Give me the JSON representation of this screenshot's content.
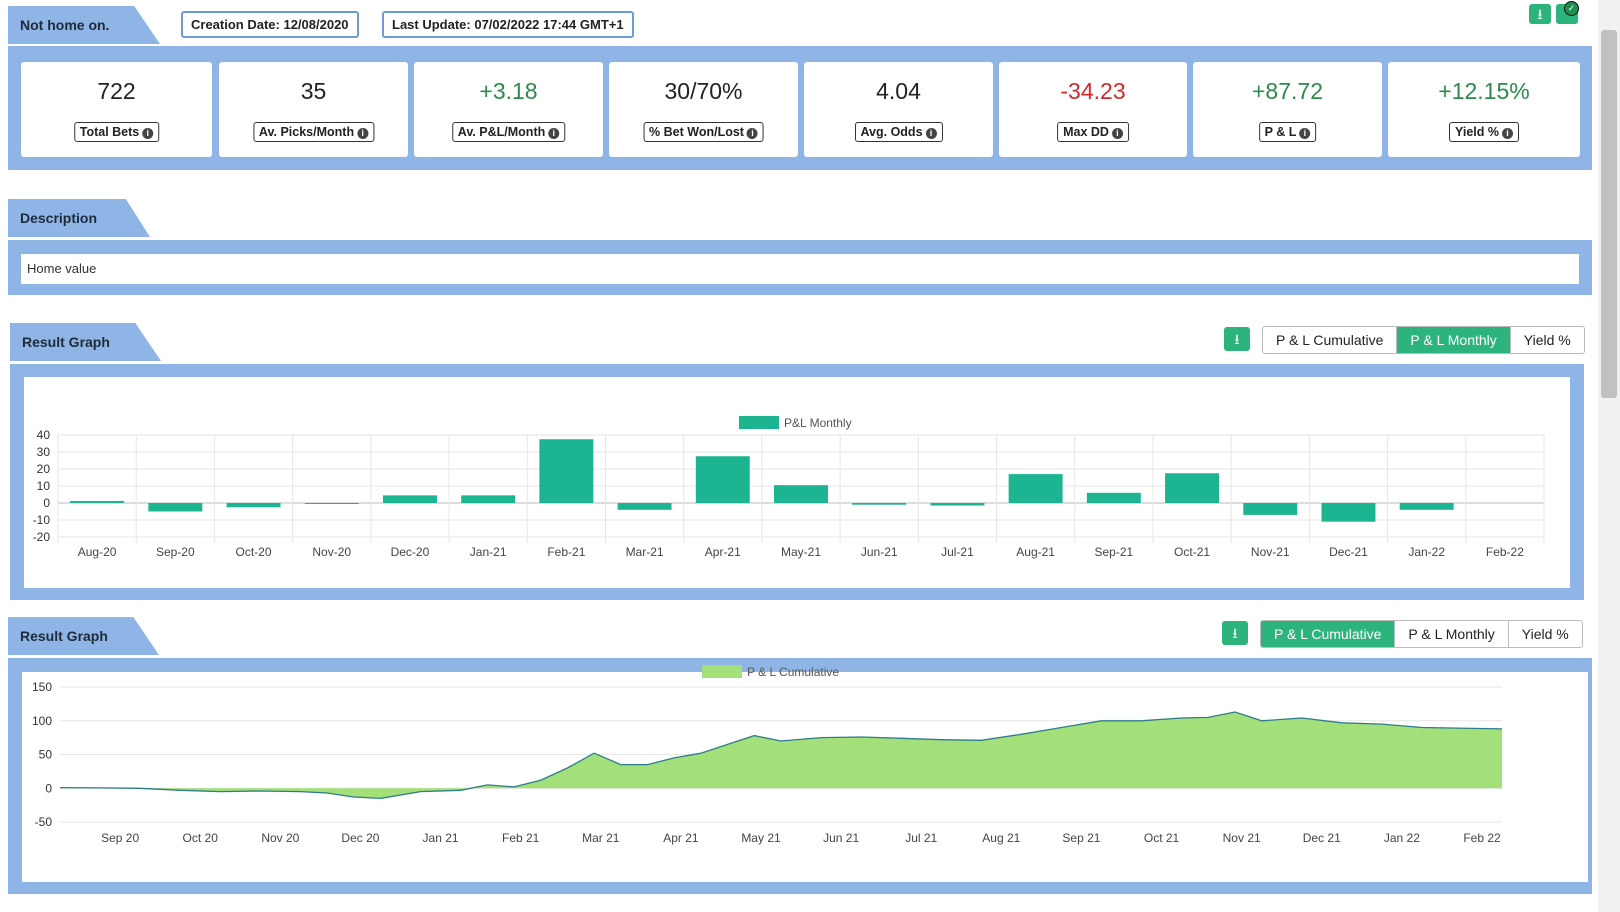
{
  "header": {
    "title": "Not home on.",
    "creation_date": "Creation Date: 12/08/2020",
    "last_update": "Last Update: 07/02/2022 17:44 GMT+1"
  },
  "stats": [
    {
      "value": "722",
      "label": "Total Bets",
      "tone": "neutral"
    },
    {
      "value": "35",
      "label": "Av. Picks/Month",
      "tone": "neutral"
    },
    {
      "value": "+3.18",
      "label": "Av. P&L/Month",
      "tone": "positive"
    },
    {
      "value": "30/70%",
      "label": "% Bet Won/Lost",
      "tone": "neutral"
    },
    {
      "value": "4.04",
      "label": "Avg. Odds",
      "tone": "neutral"
    },
    {
      "value": "-34.23",
      "label": "Max DD",
      "tone": "negative"
    },
    {
      "value": "+87.72",
      "label": "P & L",
      "tone": "positive"
    },
    {
      "value": "+12.15%",
      "label": "Yield %",
      "tone": "positive"
    }
  ],
  "description": {
    "title": "Description",
    "text": "Home value"
  },
  "graph1": {
    "title": "Result Graph",
    "toggles": [
      "P & L Cumulative",
      "P & L Monthly",
      "Yield %"
    ],
    "active": 1
  },
  "graph2": {
    "title": "Result Graph",
    "toggles": [
      "P & L Cumulative",
      "P & L Monthly",
      "Yield %"
    ],
    "active": 0
  },
  "colors": {
    "band": "#8fb5e6",
    "accent": "#2db37c",
    "bar": "#1db591",
    "area": "#a3e07a",
    "area_line": "#2d7d8c"
  },
  "icons": {
    "download": "download-icon",
    "check": "check-circle-icon",
    "info": "info-icon"
  },
  "chart_data": [
    {
      "type": "bar",
      "legend": "P&L Monthly",
      "categories": [
        "Aug-20",
        "Sep-20",
        "Oct-20",
        "Nov-20",
        "Dec-20",
        "Jan-21",
        "Feb-21",
        "Mar-21",
        "Apr-21",
        "May-21",
        "Jun-21",
        "Jul-21",
        "Aug-21",
        "Sep-21",
        "Oct-21",
        "Nov-21",
        "Dec-21",
        "Jan-22",
        "Feb-22"
      ],
      "values": [
        1.2,
        -5,
        -2.5,
        -0.5,
        4.5,
        4.5,
        37.5,
        -4,
        27.5,
        10.5,
        -1,
        -1.5,
        17,
        6,
        17.5,
        -7,
        -11,
        -4,
        0
      ],
      "yticks": [
        "40",
        "30",
        "20",
        "10",
        "0",
        "-10",
        "-20"
      ],
      "ylim": [
        -20,
        40
      ]
    },
    {
      "type": "area",
      "legend": "P & L Cumulative",
      "xticks": [
        "Sep 20",
        "Oct 20",
        "Nov 20",
        "Dec 20",
        "Jan 21",
        "Feb 21",
        "Mar 21",
        "Apr 21",
        "May 21",
        "Jun 21",
        "Jul 21",
        "Aug 21",
        "Sep 21",
        "Oct 21",
        "Nov 21",
        "Dec 21",
        "Jan 22",
        "Feb 22"
      ],
      "yticks": [
        "150",
        "100",
        "50",
        "0",
        "-50"
      ],
      "ylim": [
        -50,
        150
      ],
      "points": [
        [
          "Aug 20",
          1
        ],
        [
          "Sep 20",
          0.5
        ],
        [
          "Sep 20",
          0
        ],
        [
          "Oct 20",
          -3
        ],
        [
          "Oct 20",
          -5
        ],
        [
          "Nov 20",
          -4
        ],
        [
          "Nov 20",
          -5
        ],
        [
          "Dec 20",
          -7
        ],
        [
          "Dec 20",
          -13
        ],
        [
          "Dec 20",
          -15
        ],
        [
          "Jan 21",
          -5
        ],
        [
          "Jan 21",
          -3
        ],
        [
          "Feb 21",
          5
        ],
        [
          "Feb 21",
          2
        ],
        [
          "Feb 21",
          12
        ],
        [
          "Mar 21",
          30
        ],
        [
          "Mar 21",
          52
        ],
        [
          "Mar 21",
          35
        ],
        [
          "Apr 21",
          35
        ],
        [
          "Apr 21",
          45
        ],
        [
          "Apr 21",
          52
        ],
        [
          "May 21",
          65
        ],
        [
          "May 21",
          78
        ],
        [
          "May 21",
          70
        ],
        [
          "Jun 21",
          75
        ],
        [
          "Jun 21",
          76
        ],
        [
          "Jul 21",
          74
        ],
        [
          "Jul 21",
          72
        ],
        [
          "Aug 21",
          71
        ],
        [
          "Aug 21",
          80
        ],
        [
          "Sep 21",
          90
        ],
        [
          "Sep 21",
          100
        ],
        [
          "Oct 21",
          100
        ],
        [
          "Oct 21",
          104
        ],
        [
          "Nov 21",
          105
        ],
        [
          "Nov 21",
          113
        ],
        [
          "Nov 21",
          100
        ],
        [
          "Dec 21",
          104
        ],
        [
          "Dec 21",
          97
        ],
        [
          "Jan 22",
          95
        ],
        [
          "Jan 22",
          90
        ],
        [
          "Feb 22",
          88
        ]
      ]
    }
  ]
}
